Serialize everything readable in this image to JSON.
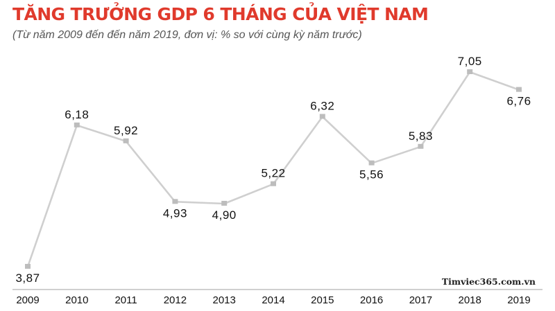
{
  "chart_data": {
    "type": "line",
    "title": "TĂNG TRƯỞNG GDP 6 THÁNG CỦA VIỆT NAM",
    "subtitle": "(Từ năm 2009 đến đến năm 2019, đơn vị: % so với cùng kỳ năm trước)",
    "xlabel": "",
    "ylabel": "",
    "categories": [
      "2009",
      "2010",
      "2011",
      "2012",
      "2013",
      "2014",
      "2015",
      "2016",
      "2017",
      "2018",
      "2019"
    ],
    "values": [
      3.87,
      6.18,
      5.92,
      4.93,
      4.9,
      5.22,
      6.32,
      5.56,
      5.83,
      7.05,
      6.76
    ],
    "data_labels": [
      "3,87",
      "6,18",
      "5,92",
      "4,93",
      "4,90",
      "5,22",
      "6,32",
      "5,56",
      "5,83",
      "7,05",
      "6,76"
    ],
    "label_side": [
      "below",
      "above",
      "above",
      "below",
      "below",
      "above",
      "above",
      "below",
      "above",
      "above",
      "below"
    ],
    "ylim": [
      3.87,
      7.05
    ],
    "grid": false,
    "legend": "none",
    "line_color": "#cfcfcf",
    "marker_color": "#bdbdbd",
    "axis_color": "#d0d0d0",
    "title_color": "#e03a2c"
  },
  "watermark": "Timviec365.com.vn"
}
